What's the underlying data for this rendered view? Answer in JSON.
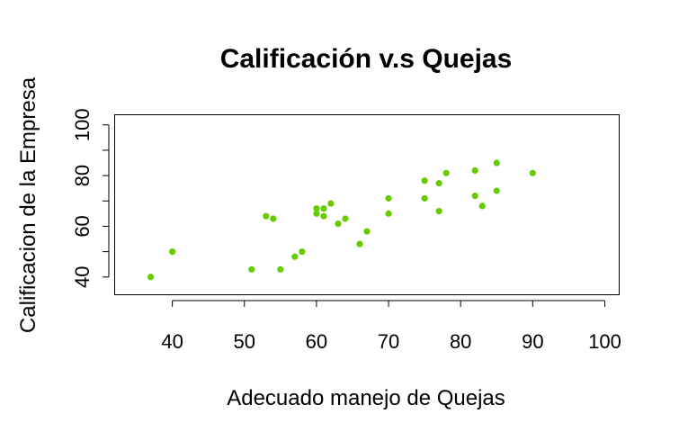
{
  "chart_data": {
    "type": "scatter",
    "title": "Calificación v.s Quejas",
    "xlabel": "Adecuado manejo de Quejas",
    "ylabel": "Calificacion de la Empresa",
    "xlim": [
      32,
      102
    ],
    "ylim": [
      33,
      104
    ],
    "x_ticks": [
      40,
      50,
      60,
      70,
      80,
      90,
      100
    ],
    "y_ticks": [
      40,
      60,
      80,
      100
    ],
    "y_minor_ticks": [
      50,
      70,
      90
    ],
    "grid": false,
    "point_color": "#66cc00",
    "points": [
      {
        "x": 37,
        "y": 40
      },
      {
        "x": 40,
        "y": 50
      },
      {
        "x": 51,
        "y": 43
      },
      {
        "x": 53,
        "y": 64
      },
      {
        "x": 54,
        "y": 63
      },
      {
        "x": 55,
        "y": 43
      },
      {
        "x": 57,
        "y": 48
      },
      {
        "x": 58,
        "y": 50
      },
      {
        "x": 60,
        "y": 67
      },
      {
        "x": 60,
        "y": 65
      },
      {
        "x": 61,
        "y": 67
      },
      {
        "x": 61,
        "y": 64
      },
      {
        "x": 62,
        "y": 69
      },
      {
        "x": 63,
        "y": 61
      },
      {
        "x": 64,
        "y": 63
      },
      {
        "x": 66,
        "y": 53
      },
      {
        "x": 67,
        "y": 58
      },
      {
        "x": 70,
        "y": 71
      },
      {
        "x": 70,
        "y": 65
      },
      {
        "x": 75,
        "y": 78
      },
      {
        "x": 75,
        "y": 71
      },
      {
        "x": 77,
        "y": 77
      },
      {
        "x": 77,
        "y": 66
      },
      {
        "x": 78,
        "y": 81
      },
      {
        "x": 82,
        "y": 82
      },
      {
        "x": 82,
        "y": 72
      },
      {
        "x": 83,
        "y": 68
      },
      {
        "x": 85,
        "y": 85
      },
      {
        "x": 85,
        "y": 74
      },
      {
        "x": 90,
        "y": 81
      }
    ]
  }
}
